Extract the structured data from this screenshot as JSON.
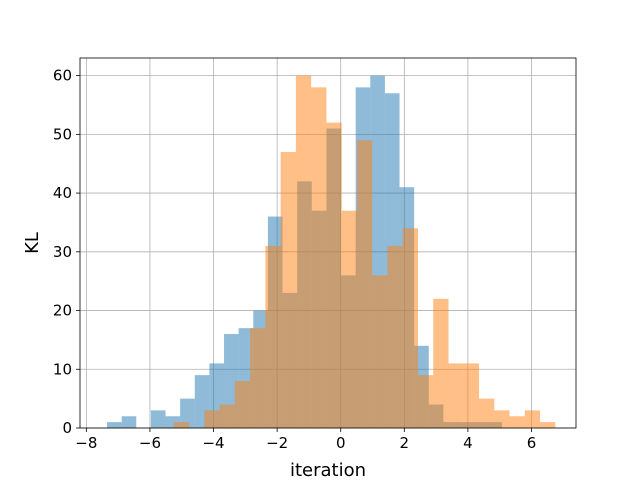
{
  "chart_data": {
    "type": "histogram",
    "title": "",
    "xlabel": "iteration",
    "ylabel": "KL",
    "xlim": [
      -8.2,
      7.4
    ],
    "ylim": [
      0,
      63
    ],
    "xticks": [
      -8,
      -6,
      -4,
      -2,
      0,
      2,
      4,
      6
    ],
    "yticks": [
      0,
      10,
      20,
      30,
      40,
      50,
      60
    ],
    "grid": true,
    "legend": "none",
    "series": [
      {
        "color": "#1f77b4",
        "opacity": 0.5,
        "bin_edges": [
          -7.35,
          -6.89,
          -6.43,
          -5.97,
          -5.51,
          -5.05,
          -4.59,
          -4.13,
          -3.67,
          -3.21,
          -2.75,
          -2.29,
          -1.83,
          -1.37,
          -0.91,
          -0.45,
          0.01,
          0.47,
          0.93,
          1.39,
          1.85,
          2.31,
          2.77,
          3.23,
          3.69,
          4.15,
          4.61,
          5.07
        ],
        "counts": [
          1,
          2,
          0,
          3,
          2,
          5,
          9,
          11,
          16,
          17,
          20,
          36,
          23,
          42,
          37,
          51,
          26,
          58,
          60,
          57,
          41,
          14,
          4,
          1,
          1,
          1,
          1
        ]
      },
      {
        "color": "#ff7f0e",
        "opacity": 0.5,
        "bin_edges": [
          -5.25,
          -4.77,
          -4.29,
          -3.81,
          -3.33,
          -2.85,
          -2.37,
          -1.89,
          -1.41,
          -0.93,
          -0.45,
          0.03,
          0.51,
          0.99,
          1.47,
          1.95,
          2.43,
          2.91,
          3.39,
          3.87,
          4.35,
          4.83,
          5.31,
          5.79,
          6.27,
          6.75
        ],
        "counts": [
          1,
          0,
          3,
          4,
          8,
          17,
          31,
          47,
          60,
          58,
          52,
          37,
          49,
          26,
          31,
          34,
          9,
          22,
          11,
          11,
          5,
          3,
          2,
          3,
          1
        ]
      }
    ]
  }
}
